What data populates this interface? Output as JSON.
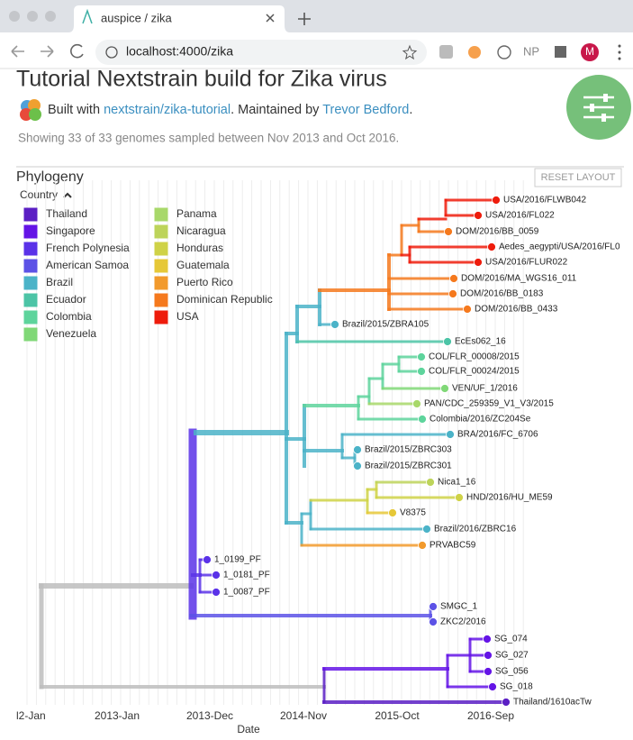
{
  "browser": {
    "tab_title": "auspice / zika",
    "url": "localhost:4000/zika",
    "profile_initial": "M",
    "extension_label": "NP"
  },
  "header": {
    "title": "Tutorial Nextstrain build for Zika virus",
    "byline": [
      "Built with ",
      "nextstrain/zika-tutorial",
      ". Maintained by ",
      "Trevor Bedford",
      "."
    ],
    "summary": "Showing 33 of 33 genomes sampled between Nov 2013 and Oct 2016."
  },
  "panel": {
    "title": "Phylogeny",
    "reset_button": "RESET LAYOUT",
    "legend_title": "Country",
    "legend": [
      {
        "label": "Thailand",
        "color": "#5b1fc4"
      },
      {
        "label": "Singapore",
        "color": "#6414e6"
      },
      {
        "label": "French Polynesia",
        "color": "#5a32e8"
      },
      {
        "label": "American Samoa",
        "color": "#5c52e6"
      },
      {
        "label": "Brazil",
        "color": "#4bb3c8"
      },
      {
        "label": "Ecuador",
        "color": "#4cc4a6"
      },
      {
        "label": "Colombia",
        "color": "#5ed49c"
      },
      {
        "label": "Venezuela",
        "color": "#80d877"
      },
      {
        "label": "Panama",
        "color": "#a8d86a"
      },
      {
        "label": "Nicaragua",
        "color": "#bdd45a"
      },
      {
        "label": "Honduras",
        "color": "#cfd247"
      },
      {
        "label": "Guatemala",
        "color": "#e6c838"
      },
      {
        "label": "Puerto Rico",
        "color": "#f29a2c"
      },
      {
        "label": "Dominican Republic",
        "color": "#f5791d"
      },
      {
        "label": "USA",
        "color": "#ee1c0c"
      }
    ]
  },
  "tree": {
    "tips": [
      "USA/2016/FLWB042",
      "USA/2016/FL022",
      "DOM/2016/BB_0059",
      "Aedes_aegypti/USA/2016/FL0",
      "USA/2016/FLUR022",
      "DOM/2016/MA_WGS16_011",
      "DOM/2016/BB_0183",
      "DOM/2016/BB_0433",
      "Brazil/2015/ZBRA105",
      "EcEs062_16",
      "COL/FLR_00008/2015",
      "COL/FLR_00024/2015",
      "VEN/UF_1/2016",
      "PAN/CDC_259359_V1_V3/2015",
      "Colombia/2016/ZC204Se",
      "BRA/2016/FC_6706",
      "Brazil/2015/ZBRC303",
      "Brazil/2015/ZBRC301",
      "Nica1_16",
      "HND/2016/HU_ME59",
      "V8375",
      "Brazil/2016/ZBRC16",
      "PRVABC59",
      "1_0199_PF",
      "1_0181_PF",
      "1_0087_PF",
      "SMGC_1",
      "ZKC2/2016",
      "SG_074",
      "SG_027",
      "SG_056",
      "SG_018",
      "Thailand/1610acTw"
    ],
    "x_axis": {
      "ticks": [
        "l2-Jan",
        "2013-Jan",
        "2013-Dec",
        "2014-Nov",
        "2015-Oct",
        "2016-Sep"
      ],
      "label": "Date"
    }
  }
}
